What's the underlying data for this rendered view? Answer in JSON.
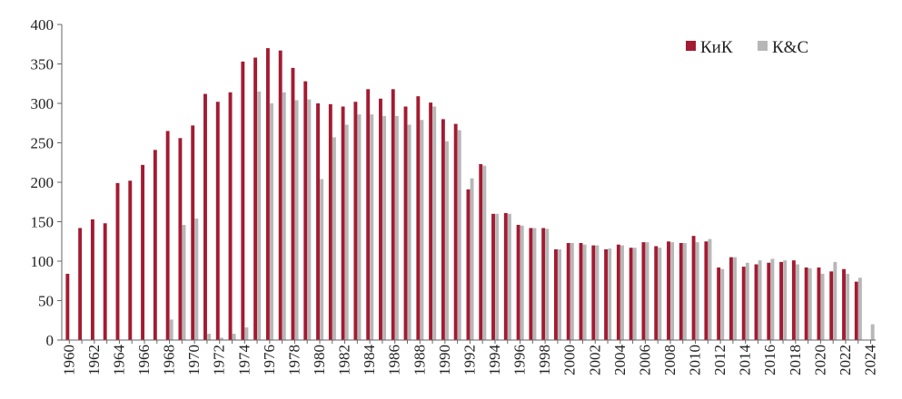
{
  "chart_data": {
    "type": "bar",
    "title": "",
    "xlabel": "",
    "ylabel": "",
    "ylim": [
      0,
      400
    ],
    "yticks": [
      0,
      50,
      100,
      150,
      200,
      250,
      300,
      350,
      400
    ],
    "grid": false,
    "legend_position": "top-right",
    "x_tick_every": 2,
    "categories": [
      1960,
      1961,
      1962,
      1963,
      1964,
      1965,
      1966,
      1967,
      1968,
      1969,
      1970,
      1971,
      1972,
      1973,
      1974,
      1975,
      1976,
      1977,
      1978,
      1979,
      1980,
      1981,
      1982,
      1983,
      1984,
      1985,
      1986,
      1987,
      1988,
      1989,
      1990,
      1991,
      1992,
      1993,
      1994,
      1995,
      1996,
      1997,
      1998,
      1999,
      2000,
      2001,
      2002,
      2003,
      2004,
      2005,
      2006,
      2007,
      2008,
      2009,
      2010,
      2011,
      2012,
      2013,
      2014,
      2015,
      2016,
      2017,
      2018,
      2019,
      2020,
      2021,
      2022,
      2023,
      2024
    ],
    "series": [
      {
        "name": "КиК",
        "color": "#a31b32",
        "values": [
          84,
          142,
          153,
          148,
          199,
          202,
          222,
          241,
          265,
          256,
          272,
          312,
          302,
          314,
          353,
          358,
          370,
          367,
          345,
          328,
          300,
          299,
          296,
          302,
          318,
          306,
          318,
          296,
          309,
          301,
          280,
          274,
          191,
          223,
          160,
          161,
          146,
          142,
          142,
          115,
          123,
          123,
          120,
          115,
          121,
          117,
          124,
          119,
          125,
          123,
          132,
          125,
          92,
          105,
          93,
          96,
          98,
          99,
          101,
          92,
          92,
          87,
          90,
          74,
          0
        ]
      },
      {
        "name": "К&С",
        "color": "#b7b7b7",
        "values": [
          0,
          0,
          0,
          0,
          0,
          0,
          0,
          0,
          26,
          146,
          154,
          8,
          3,
          8,
          16,
          315,
          300,
          314,
          304,
          305,
          204,
          257,
          273,
          286,
          286,
          284,
          284,
          273,
          279,
          296,
          252,
          266,
          205,
          221,
          160,
          160,
          145,
          142,
          141,
          115,
          123,
          121,
          120,
          116,
          120,
          117,
          124,
          117,
          124,
          123,
          124,
          128,
          90,
          105,
          98,
          101,
          103,
          101,
          96,
          91,
          84,
          99,
          84,
          79,
          20
        ]
      }
    ]
  }
}
